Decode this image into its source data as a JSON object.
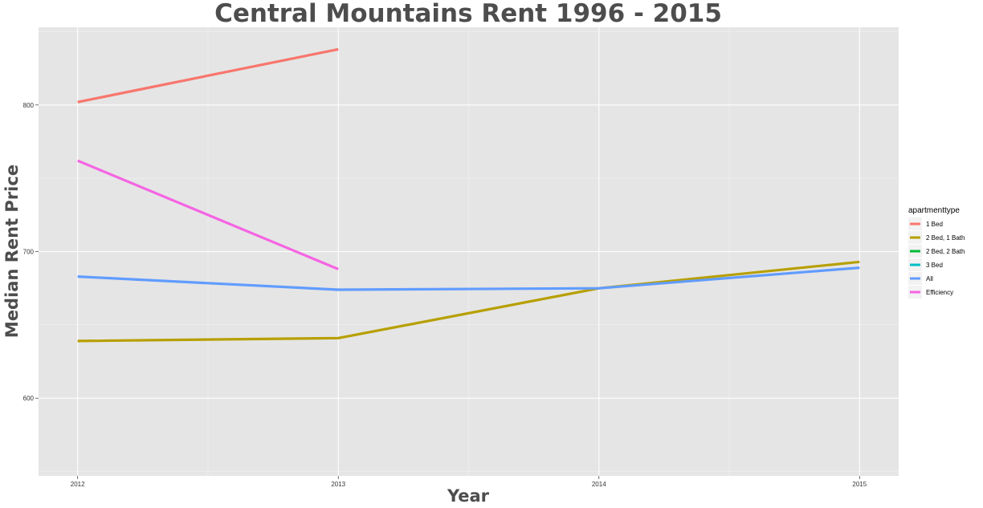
{
  "chart_data": {
    "type": "line",
    "title": "Central Mountains Rent 1996 - 2015",
    "xlabel": "Year",
    "ylabel": "Median Rent Price",
    "x_ticks": [
      "2012",
      "2013",
      "2014",
      "2015"
    ],
    "y_ticks": [
      "600",
      "700",
      "800"
    ],
    "xlim": [
      2011.85,
      2015.15
    ],
    "ylim": [
      547,
      853
    ],
    "grid": true,
    "legend": {
      "title": "apartmenttype",
      "placement": "right",
      "entries": [
        "1 Bed",
        "2 Bed, 1 Bath",
        "2 Bed, 2 Bath",
        "3 Bed",
        "All",
        "Efficiency"
      ]
    },
    "series": [
      {
        "name": "1 Bed",
        "color": "#F8766D",
        "x": [
          2012,
          2013
        ],
        "y": [
          802,
          838
        ]
      },
      {
        "name": "2 Bed, 1 Bath",
        "color": "#B79F00",
        "x": [
          2012,
          2013,
          2014,
          2015
        ],
        "y": [
          639,
          641,
          675,
          693
        ]
      },
      {
        "name": "2 Bed, 2 Bath",
        "color": "#00BA38",
        "x": [],
        "y": []
      },
      {
        "name": "3 Bed",
        "color": "#00BFC4",
        "x": [],
        "y": []
      },
      {
        "name": "All",
        "color": "#619CFF",
        "x": [
          2012,
          2013,
          2014,
          2015
        ],
        "y": [
          683,
          674,
          675,
          689
        ]
      },
      {
        "name": "Efficiency",
        "color": "#F564E3",
        "x": [
          2012,
          2013
        ],
        "y": [
          762,
          688
        ]
      }
    ]
  }
}
